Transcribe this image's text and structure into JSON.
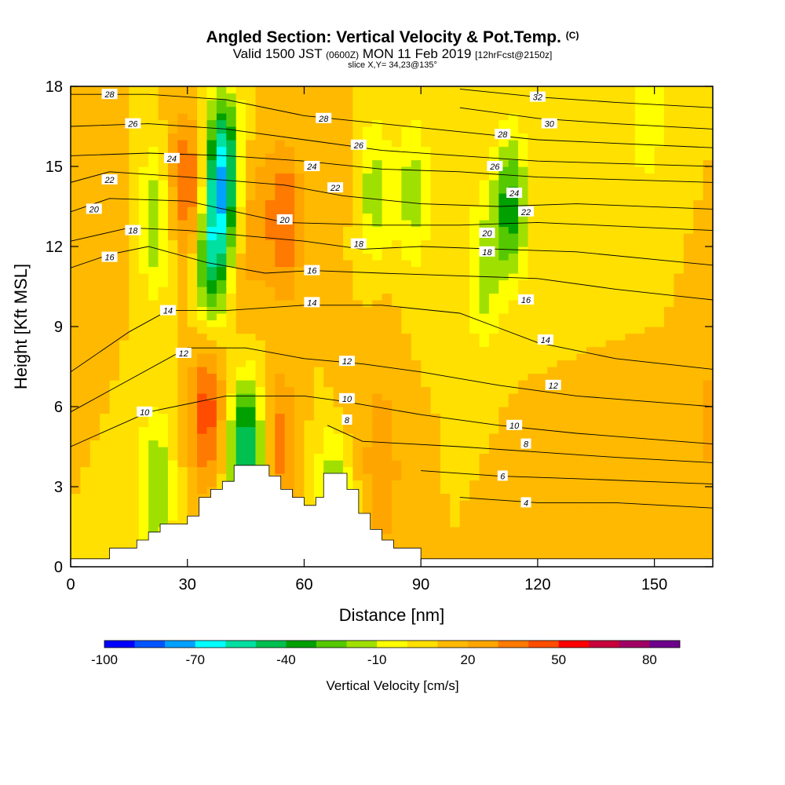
{
  "title": {
    "main": "Angled Section: Vertical Velocity & Pot.Temp.",
    "units_tag": "(C)",
    "valid_a": "Valid 1500 JST",
    "valid_b": "(0600Z)",
    "valid_c": "MON 11 Feb 2019",
    "valid_d": "[12hrFcst@2150z]",
    "slice": "slice X,Y= 34,23@135°"
  },
  "chart_data": {
    "type": "heatmap",
    "xlabel": "Distance [nm]",
    "ylabel": "Height [Kft MSL]",
    "xlim": [
      0,
      165
    ],
    "ylim": [
      0,
      18
    ],
    "x_ticks": [
      0,
      30,
      60,
      90,
      120,
      150
    ],
    "y_ticks": [
      0,
      3,
      6,
      9,
      12,
      15,
      18
    ],
    "colorbar": {
      "title": "Vertical Velocity [cm/s]",
      "range": [
        -100,
        90
      ],
      "step": 10,
      "tick_labels": [
        -100,
        -70,
        -40,
        -10,
        20,
        50,
        80
      ],
      "colors": [
        "#0000ff",
        "#0055ff",
        "#00a0ff",
        "#00ffff",
        "#00e0a0",
        "#00c050",
        "#00a000",
        "#55c800",
        "#a0e000",
        "#ffff00",
        "#ffe000",
        "#ffb900",
        "#ffa500",
        "#ff7a00",
        "#ff4d00",
        "#ff0000",
        "#c8003c",
        "#a00064",
        "#6e008c"
      ]
    },
    "vertical_velocity_cells": {
      "background": 10,
      "features": [
        {
          "x": 44,
          "y": 9.5,
          "value": 15
        },
        {
          "x": 33,
          "y": 13.5,
          "value": 45
        },
        {
          "x": 36,
          "y": 12,
          "value": -60
        },
        {
          "x": 39,
          "y": 15,
          "value": -60
        },
        {
          "x": 28,
          "y": 14.5,
          "value": 30
        },
        {
          "x": 22,
          "y": 13,
          "value": -20
        },
        {
          "x": 55,
          "y": 13,
          "value": 40
        },
        {
          "x": 47,
          "y": 13,
          "value": 25
        },
        {
          "x": 67,
          "y": 15,
          "value": 20
        },
        {
          "x": 78,
          "y": 14,
          "value": -15
        },
        {
          "x": 88,
          "y": 14,
          "value": -15
        },
        {
          "x": 113,
          "y": 13.5,
          "value": -35
        },
        {
          "x": 106,
          "y": 11,
          "value": -15
        },
        {
          "x": 148,
          "y": 17,
          "value": -10
        },
        {
          "x": 45,
          "y": 4.2,
          "value": -55
        },
        {
          "x": 35,
          "y": 5.8,
          "value": 45
        },
        {
          "x": 22,
          "y": 3,
          "value": -20
        },
        {
          "x": 54,
          "y": 4.5,
          "value": 35
        },
        {
          "x": 70,
          "y": 6,
          "value": 25
        },
        {
          "x": 68,
          "y": 3.5,
          "value": -20
        },
        {
          "x": 80,
          "y": 3.5,
          "value": 30
        },
        {
          "x": 115,
          "y": 1.2,
          "value": 20
        },
        {
          "x": 150,
          "y": 1.2,
          "value": 20
        },
        {
          "x": 165,
          "y": 5.5,
          "value": 25
        },
        {
          "x": 10,
          "y": 14,
          "value": 20
        },
        {
          "x": 80,
          "y": 8,
          "value": 15
        }
      ]
    },
    "terrain_kft": [
      [
        0,
        0.3
      ],
      [
        10,
        0.7
      ],
      [
        17,
        1.0
      ],
      [
        20,
        1.3
      ],
      [
        23,
        1.6
      ],
      [
        30,
        1.9
      ],
      [
        33,
        2.6
      ],
      [
        36,
        2.9
      ],
      [
        39,
        3.2
      ],
      [
        42,
        3.8
      ],
      [
        51,
        3.4
      ],
      [
        54,
        2.9
      ],
      [
        57,
        2.6
      ],
      [
        60,
        2.3
      ],
      [
        63,
        2.6
      ],
      [
        65,
        3.5
      ],
      [
        71,
        2.9
      ],
      [
        74,
        2.0
      ],
      [
        77,
        1.4
      ],
      [
        80,
        1.0
      ],
      [
        83,
        0.7
      ],
      [
        90,
        0.3
      ],
      [
        165,
        0.3
      ]
    ],
    "isentropes_c": [
      {
        "level": 4,
        "x": [
          100,
          120,
          140,
          165
        ],
        "y": [
          2.6,
          2.4,
          2.4,
          2.2
        ]
      },
      {
        "level": 6,
        "x": [
          90,
          110,
          130,
          165
        ],
        "y": [
          3.6,
          3.4,
          3.3,
          3.1
        ]
      },
      {
        "level": 8,
        "x": [
          66,
          75,
          100,
          120,
          140,
          165
        ],
        "y": [
          5.3,
          4.7,
          4.5,
          4.3,
          4.1,
          3.9
        ]
      },
      {
        "level": 10,
        "x": [
          0,
          20,
          40,
          60,
          70,
          90,
          110,
          130,
          165
        ],
        "y": [
          4.5,
          5.8,
          6.4,
          6.4,
          6.2,
          5.7,
          5.3,
          5.0,
          4.6
        ]
      },
      {
        "level": 12,
        "x": [
          0,
          15,
          30,
          45,
          60,
          75,
          90,
          110,
          130,
          165
        ],
        "y": [
          5.8,
          7.0,
          8.2,
          8.2,
          7.8,
          7.6,
          7.3,
          6.8,
          6.4,
          6.0
        ]
      },
      {
        "level": 14,
        "x": [
          0,
          15,
          25,
          40,
          60,
          80,
          100,
          120,
          140,
          165
        ],
        "y": [
          7.3,
          8.8,
          9.6,
          9.6,
          9.8,
          9.8,
          9.5,
          8.4,
          7.8,
          7.4
        ]
      },
      {
        "level": 16,
        "x": [
          0,
          10,
          20,
          35,
          50,
          62,
          80,
          100,
          120,
          140,
          165
        ],
        "y": [
          11.2,
          11.7,
          12.0,
          11.4,
          11.0,
          11.1,
          11.0,
          10.9,
          10.8,
          10.4,
          10.0
        ]
      },
      {
        "level": 18,
        "x": [
          0,
          15,
          30,
          45,
          60,
          75,
          90,
          110,
          130,
          165
        ],
        "y": [
          12.2,
          12.7,
          12.6,
          12.4,
          12.2,
          11.9,
          12.0,
          11.9,
          11.8,
          11.3
        ]
      },
      {
        "level": 20,
        "x": [
          0,
          10,
          30,
          55,
          80,
          100,
          120,
          165
        ],
        "y": [
          13.3,
          13.8,
          13.7,
          12.9,
          12.8,
          12.8,
          12.9,
          12.6
        ]
      },
      {
        "level": 22,
        "x": [
          0,
          10,
          30,
          55,
          70,
          90,
          110,
          130,
          165
        ],
        "y": [
          14.4,
          14.8,
          14.6,
          14.3,
          13.9,
          13.6,
          13.5,
          13.6,
          13.4
        ]
      },
      {
        "level": 24,
        "x": [
          0,
          20,
          40,
          60,
          80,
          100,
          120,
          165
        ],
        "y": [
          15.4,
          15.5,
          15.4,
          15.2,
          14.9,
          14.8,
          14.6,
          14.4
        ]
      },
      {
        "level": 26,
        "x": [
          0,
          20,
          40,
          60,
          80,
          100,
          120,
          165
        ],
        "y": [
          16.5,
          16.6,
          16.4,
          16.0,
          15.6,
          15.4,
          15.2,
          15.0
        ]
      },
      {
        "level": 28,
        "x": [
          0,
          20,
          40,
          60,
          80,
          100,
          120,
          165
        ],
        "y": [
          17.7,
          17.7,
          17.5,
          16.9,
          16.6,
          16.3,
          16.0,
          15.7
        ]
      },
      {
        "level": 30,
        "x": [
          100,
          120,
          140,
          165
        ],
        "y": [
          17.2,
          16.8,
          16.6,
          16.4
        ]
      },
      {
        "level": 32,
        "x": [
          100,
          120,
          140,
          165
        ],
        "y": [
          17.9,
          17.6,
          17.4,
          17.2
        ]
      }
    ],
    "isentrope_labels": [
      {
        "text": "28",
        "x": 10,
        "y": 17.7
      },
      {
        "text": "26",
        "x": 16,
        "y": 16.6
      },
      {
        "text": "24",
        "x": 26,
        "y": 15.3
      },
      {
        "text": "22",
        "x": 10,
        "y": 14.5
      },
      {
        "text": "20",
        "x": 6,
        "y": 13.4
      },
      {
        "text": "18",
        "x": 16,
        "y": 12.6
      },
      {
        "text": "16",
        "x": 10,
        "y": 11.6
      },
      {
        "text": "14",
        "x": 25,
        "y": 9.6
      },
      {
        "text": "12",
        "x": 29,
        "y": 8.0
      },
      {
        "text": "10",
        "x": 19,
        "y": 5.8
      },
      {
        "text": "28",
        "x": 65,
        "y": 16.8
      },
      {
        "text": "26",
        "x": 74,
        "y": 15.8
      },
      {
        "text": "24",
        "x": 62,
        "y": 15.0
      },
      {
        "text": "22",
        "x": 68,
        "y": 14.2
      },
      {
        "text": "20",
        "x": 55,
        "y": 13.0
      },
      {
        "text": "18",
        "x": 74,
        "y": 12.1
      },
      {
        "text": "16",
        "x": 62,
        "y": 11.1
      },
      {
        "text": "14",
        "x": 62,
        "y": 9.9
      },
      {
        "text": "12",
        "x": 71,
        "y": 7.7
      },
      {
        "text": "10",
        "x": 71,
        "y": 6.3
      },
      {
        "text": "8",
        "x": 71,
        "y": 5.5
      },
      {
        "text": "32",
        "x": 120,
        "y": 17.6
      },
      {
        "text": "30",
        "x": 123,
        "y": 16.6
      },
      {
        "text": "28",
        "x": 111,
        "y": 16.2
      },
      {
        "text": "26",
        "x": 109,
        "y": 15.0
      },
      {
        "text": "24",
        "x": 114,
        "y": 14.0
      },
      {
        "text": "22",
        "x": 117,
        "y": 13.3
      },
      {
        "text": "20",
        "x": 107,
        "y": 12.5
      },
      {
        "text": "18",
        "x": 107,
        "y": 11.8
      },
      {
        "text": "16",
        "x": 117,
        "y": 10.0
      },
      {
        "text": "14",
        "x": 122,
        "y": 8.5
      },
      {
        "text": "12",
        "x": 124,
        "y": 6.8
      },
      {
        "text": "10",
        "x": 114,
        "y": 5.3
      },
      {
        "text": "8",
        "x": 117,
        "y": 4.6
      },
      {
        "text": "6",
        "x": 111,
        "y": 3.4
      },
      {
        "text": "4",
        "x": 117,
        "y": 2.4
      }
    ]
  }
}
